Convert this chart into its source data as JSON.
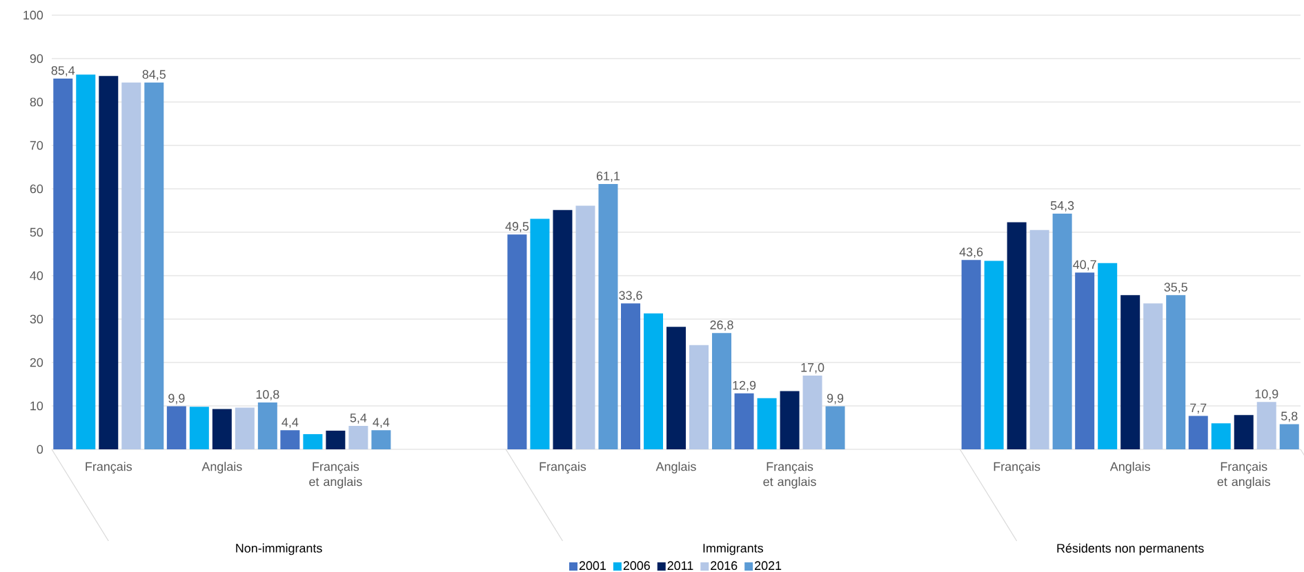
{
  "chart_data": {
    "type": "bar",
    "categories": [
      "Français",
      "Anglais",
      "Français et anglais",
      null,
      "Français",
      "Anglais",
      "Français et anglais",
      null,
      "Français",
      "Anglais",
      "Français et anglais"
    ],
    "series": [
      {
        "name": "2001",
        "color": "#4472c4",
        "values": [
          85.4,
          9.9,
          4.4,
          null,
          49.5,
          33.6,
          12.9,
          null,
          43.6,
          40.7,
          7.7
        ],
        "value_labels": [
          "85,4",
          "9,9",
          "4,4",
          null,
          "49,5",
          "33,6",
          "12,9",
          null,
          "43,6",
          "40,7",
          "7,7"
        ]
      },
      {
        "name": "2006",
        "color": "#00b0f0",
        "values": [
          86.3,
          9.8,
          3.5,
          null,
          53.1,
          31.3,
          11.8,
          null,
          43.4,
          42.9,
          6.0
        ]
      },
      {
        "name": "2011",
        "color": "#002060",
        "values": [
          86.0,
          9.3,
          4.3,
          null,
          55.1,
          28.2,
          13.4,
          null,
          52.3,
          35.5,
          7.9
        ]
      },
      {
        "name": "2016",
        "color": "#b4c7e7",
        "values": [
          84.5,
          9.6,
          5.4,
          null,
          56.1,
          24.0,
          17.0,
          null,
          50.5,
          33.6,
          10.9
        ],
        "value_labels": [
          null,
          null,
          "5,4",
          null,
          null,
          null,
          "17,0",
          null,
          null,
          null,
          "10,9"
        ]
      },
      {
        "name": "2021",
        "color": "#5b9bd5",
        "values": [
          84.5,
          10.8,
          4.4,
          null,
          61.1,
          26.8,
          9.9,
          null,
          54.3,
          35.5,
          5.8
        ],
        "value_labels": [
          "84,5",
          "10,8",
          "4,4",
          null,
          "61,1",
          "26,8",
          "9,9",
          null,
          "54,3",
          "35,5",
          "5,8"
        ]
      }
    ],
    "annotations": [
      "Non-immigrants",
      "Immigrants",
      "Résidents non permanents"
    ],
    "ylim": [
      0,
      100
    ],
    "yticks": [
      0,
      10,
      20,
      30,
      40,
      50,
      60,
      70,
      80,
      90,
      100
    ],
    "grid": "y",
    "legend": "bottom"
  }
}
